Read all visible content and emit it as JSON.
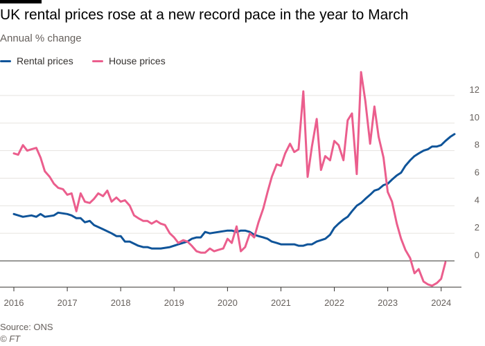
{
  "header": {
    "title": "UK rental prices rose at a new record pace in the year to March",
    "subtitle": "Annual % change"
  },
  "footer": {
    "source": "Source: ONS",
    "credit": "© FT"
  },
  "colors": {
    "rental": "#0f5499",
    "house": "#eb5e8d",
    "grid": "#e6e3df",
    "zero_line": "#33302e",
    "tick_text": "#66605c"
  },
  "chart_data": {
    "type": "line",
    "title": "UK rental prices rose at a new record pace in the year to March",
    "subtitle": "Annual % change",
    "xlabel": "",
    "ylabel": "",
    "xlim": [
      2016.0,
      2024.25
    ],
    "ylim": [
      -2,
      12.5
    ],
    "grid": true,
    "y_axis_side": "right",
    "legend_position": "top-left",
    "x_ticks": [
      {
        "value": 2016,
        "label": "2016"
      },
      {
        "value": 2017,
        "label": "2017"
      },
      {
        "value": 2018,
        "label": "2018"
      },
      {
        "value": 2019,
        "label": "2019"
      },
      {
        "value": 2020,
        "label": "2020"
      },
      {
        "value": 2021,
        "label": "2021"
      },
      {
        "value": 2022,
        "label": "2022"
      },
      {
        "value": 2023,
        "label": "2023"
      },
      {
        "value": 2024,
        "label": "2024"
      }
    ],
    "y_ticks": [
      {
        "value": 0,
        "label": "0"
      },
      {
        "value": 2,
        "label": "2"
      },
      {
        "value": 4,
        "label": "4"
      },
      {
        "value": 6,
        "label": "6"
      },
      {
        "value": 8,
        "label": "8"
      },
      {
        "value": 10,
        "label": "10"
      },
      {
        "value": 12,
        "label": "12"
      }
    ],
    "series": [
      {
        "name": "Rental prices",
        "color": "#0f5499",
        "points": [
          [
            2016.0,
            3.4
          ],
          [
            2016.17,
            3.2
          ],
          [
            2016.33,
            3.3
          ],
          [
            2016.42,
            3.2
          ],
          [
            2016.5,
            3.4
          ],
          [
            2016.58,
            3.2
          ],
          [
            2016.75,
            3.3
          ],
          [
            2016.83,
            3.5
          ],
          [
            2017.0,
            3.4
          ],
          [
            2017.08,
            3.3
          ],
          [
            2017.17,
            3.1
          ],
          [
            2017.25,
            3.1
          ],
          [
            2017.33,
            2.8
          ],
          [
            2017.42,
            2.9
          ],
          [
            2017.5,
            2.6
          ],
          [
            2017.67,
            2.3
          ],
          [
            2017.83,
            2.0
          ],
          [
            2017.92,
            1.8
          ],
          [
            2018.0,
            1.8
          ],
          [
            2018.08,
            1.4
          ],
          [
            2018.17,
            1.4
          ],
          [
            2018.33,
            1.1
          ],
          [
            2018.42,
            1.0
          ],
          [
            2018.5,
            1.0
          ],
          [
            2018.58,
            0.9
          ],
          [
            2018.75,
            0.9
          ],
          [
            2018.92,
            1.0
          ],
          [
            2019.08,
            1.2
          ],
          [
            2019.25,
            1.4
          ],
          [
            2019.33,
            1.6
          ],
          [
            2019.42,
            1.7
          ],
          [
            2019.5,
            1.7
          ],
          [
            2019.58,
            2.1
          ],
          [
            2019.67,
            2.0
          ],
          [
            2019.83,
            2.1
          ],
          [
            2020.0,
            2.2
          ],
          [
            2020.08,
            2.2
          ],
          [
            2020.17,
            2.1
          ],
          [
            2020.25,
            2.2
          ],
          [
            2020.33,
            2.2
          ],
          [
            2020.42,
            2.1
          ],
          [
            2020.5,
            1.9
          ],
          [
            2020.58,
            1.8
          ],
          [
            2020.67,
            1.7
          ],
          [
            2020.75,
            1.6
          ],
          [
            2020.83,
            1.4
          ],
          [
            2020.92,
            1.3
          ],
          [
            2021.0,
            1.2
          ],
          [
            2021.08,
            1.2
          ],
          [
            2021.17,
            1.2
          ],
          [
            2021.25,
            1.2
          ],
          [
            2021.33,
            1.1
          ],
          [
            2021.42,
            1.1
          ],
          [
            2021.5,
            1.2
          ],
          [
            2021.58,
            1.2
          ],
          [
            2021.67,
            1.4
          ],
          [
            2021.75,
            1.5
          ],
          [
            2021.83,
            1.6
          ],
          [
            2021.92,
            1.9
          ],
          [
            2022.0,
            2.4
          ],
          [
            2022.08,
            2.7
          ],
          [
            2022.17,
            3.0
          ],
          [
            2022.25,
            3.2
          ],
          [
            2022.33,
            3.6
          ],
          [
            2022.42,
            4.0
          ],
          [
            2022.5,
            4.2
          ],
          [
            2022.58,
            4.5
          ],
          [
            2022.67,
            4.8
          ],
          [
            2022.75,
            5.1
          ],
          [
            2022.83,
            5.2
          ],
          [
            2022.92,
            5.5
          ],
          [
            2023.0,
            5.6
          ],
          [
            2023.08,
            5.9
          ],
          [
            2023.17,
            6.2
          ],
          [
            2023.25,
            6.4
          ],
          [
            2023.33,
            6.9
          ],
          [
            2023.42,
            7.3
          ],
          [
            2023.5,
            7.6
          ],
          [
            2023.58,
            7.8
          ],
          [
            2023.67,
            8.0
          ],
          [
            2023.75,
            8.1
          ],
          [
            2023.83,
            8.3
          ],
          [
            2023.92,
            8.3
          ],
          [
            2024.0,
            8.4
          ],
          [
            2024.08,
            8.7
          ],
          [
            2024.17,
            9.0
          ],
          [
            2024.25,
            9.2
          ]
        ]
      },
      {
        "name": "House prices",
        "color": "#eb5e8d",
        "points": [
          [
            2016.0,
            7.8
          ],
          [
            2016.08,
            7.7
          ],
          [
            2016.17,
            8.4
          ],
          [
            2016.25,
            8.0
          ],
          [
            2016.33,
            8.1
          ],
          [
            2016.42,
            8.2
          ],
          [
            2016.5,
            7.5
          ],
          [
            2016.58,
            6.5
          ],
          [
            2016.67,
            6.1
          ],
          [
            2016.75,
            5.6
          ],
          [
            2016.83,
            5.3
          ],
          [
            2016.92,
            5.2
          ],
          [
            2017.0,
            4.8
          ],
          [
            2017.08,
            4.9
          ],
          [
            2017.17,
            3.6
          ],
          [
            2017.25,
            4.9
          ],
          [
            2017.33,
            4.3
          ],
          [
            2017.42,
            4.2
          ],
          [
            2017.5,
            4.5
          ],
          [
            2017.58,
            4.9
          ],
          [
            2017.67,
            4.7
          ],
          [
            2017.75,
            5.1
          ],
          [
            2017.83,
            4.3
          ],
          [
            2017.92,
            4.6
          ],
          [
            2018.0,
            4.3
          ],
          [
            2018.08,
            4.4
          ],
          [
            2018.17,
            4.0
          ],
          [
            2018.25,
            3.3
          ],
          [
            2018.33,
            3.1
          ],
          [
            2018.42,
            2.9
          ],
          [
            2018.5,
            2.9
          ],
          [
            2018.58,
            2.7
          ],
          [
            2018.67,
            2.9
          ],
          [
            2018.75,
            2.7
          ],
          [
            2018.83,
            2.6
          ],
          [
            2018.92,
            2.0
          ],
          [
            2019.0,
            1.7
          ],
          [
            2019.08,
            1.3
          ],
          [
            2019.17,
            1.5
          ],
          [
            2019.25,
            1.4
          ],
          [
            2019.33,
            1.1
          ],
          [
            2019.42,
            0.7
          ],
          [
            2019.5,
            0.6
          ],
          [
            2019.58,
            0.6
          ],
          [
            2019.67,
            0.9
          ],
          [
            2019.75,
            0.7
          ],
          [
            2019.83,
            0.8
          ],
          [
            2019.92,
            0.9
          ],
          [
            2020.0,
            1.6
          ],
          [
            2020.08,
            1.3
          ],
          [
            2020.17,
            2.5
          ],
          [
            2020.25,
            0.7
          ],
          [
            2020.33,
            1.0
          ],
          [
            2020.42,
            2.0
          ],
          [
            2020.5,
            1.7
          ],
          [
            2020.58,
            2.8
          ],
          [
            2020.67,
            3.8
          ],
          [
            2020.75,
            5.0
          ],
          [
            2020.83,
            6.1
          ],
          [
            2020.92,
            7.0
          ],
          [
            2021.0,
            6.9
          ],
          [
            2021.08,
            7.8
          ],
          [
            2021.17,
            8.5
          ],
          [
            2021.25,
            7.9
          ],
          [
            2021.33,
            8.1
          ],
          [
            2021.42,
            12.3
          ],
          [
            2021.5,
            6.1
          ],
          [
            2021.58,
            8.3
          ],
          [
            2021.67,
            10.3
          ],
          [
            2021.75,
            6.6
          ],
          [
            2021.83,
            7.6
          ],
          [
            2021.92,
            7.3
          ],
          [
            2022.0,
            8.7
          ],
          [
            2022.08,
            8.4
          ],
          [
            2022.17,
            7.3
          ],
          [
            2022.25,
            10.2
          ],
          [
            2022.33,
            10.7
          ],
          [
            2022.42,
            6.3
          ],
          [
            2022.5,
            13.7
          ],
          [
            2022.58,
            11.6
          ],
          [
            2022.67,
            8.5
          ],
          [
            2022.75,
            11.2
          ],
          [
            2022.83,
            9.0
          ],
          [
            2022.92,
            7.5
          ],
          [
            2023.0,
            5.0
          ],
          [
            2023.08,
            4.3
          ],
          [
            2023.17,
            2.7
          ],
          [
            2023.25,
            1.6
          ],
          [
            2023.33,
            0.8
          ],
          [
            2023.42,
            0.2
          ],
          [
            2023.5,
            -0.9
          ],
          [
            2023.58,
            -0.6
          ],
          [
            2023.67,
            -1.5
          ],
          [
            2023.75,
            -1.7
          ],
          [
            2023.83,
            -1.8
          ],
          [
            2023.92,
            -1.6
          ],
          [
            2024.0,
            -1.3
          ],
          [
            2024.08,
            -0.1
          ]
        ]
      }
    ]
  }
}
